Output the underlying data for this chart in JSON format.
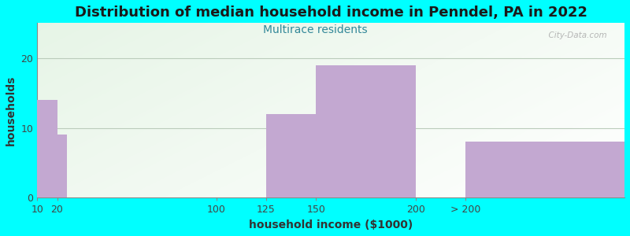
{
  "title": "Distribution of median household income in Penndel, PA in 2022",
  "subtitle": "Multirace residents",
  "xlabel": "household income ($1000)",
  "ylabel": "households",
  "background_color": "#00FFFF",
  "bar_color": "#C3A8D1",
  "title_fontsize": 13,
  "subtitle_fontsize": 10,
  "label_fontsize": 10,
  "tick_fontsize": 9,
  "bar_lefts": [
    10,
    20,
    125,
    150,
    225
  ],
  "bar_widths": [
    10,
    5,
    25,
    50,
    80
  ],
  "bar_heights": [
    14,
    9,
    12,
    19,
    8
  ],
  "xtick_positions": [
    10,
    20,
    100,
    125,
    150,
    200,
    225
  ],
  "xtick_labels": [
    "10",
    "20",
    "100",
    "125",
    "150",
    "200",
    "> 200"
  ],
  "xlim": [
    10,
    305
  ],
  "ylim": [
    0,
    25
  ],
  "yticks": [
    0,
    10,
    20
  ],
  "grid_color": "#BBCCBB",
  "watermark": "  City-Data.com"
}
